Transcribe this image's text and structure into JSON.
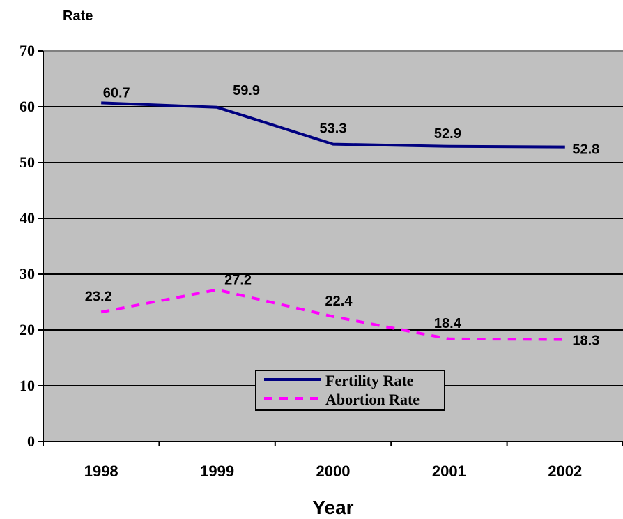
{
  "chart_data": {
    "type": "line",
    "ylabel": "Rate",
    "xlabel": "Year",
    "categories": [
      "1998",
      "1999",
      "2000",
      "2001",
      "2002"
    ],
    "ylim": [
      0,
      70
    ],
    "yticks": [
      0,
      10,
      20,
      30,
      40,
      50,
      60,
      70
    ],
    "grid": true,
    "legend_position": "bottom-center",
    "plot_background": "#c0c0c0",
    "series": [
      {
        "name": "Fertility Rate",
        "values": [
          60.7,
          59.9,
          53.3,
          52.9,
          52.8
        ],
        "color": "#000080",
        "style": "solid"
      },
      {
        "name": "Abortion Rate",
        "values": [
          23.2,
          27.2,
          22.4,
          18.4,
          18.3
        ],
        "color": "#ff00ff",
        "style": "dashed"
      }
    ]
  }
}
